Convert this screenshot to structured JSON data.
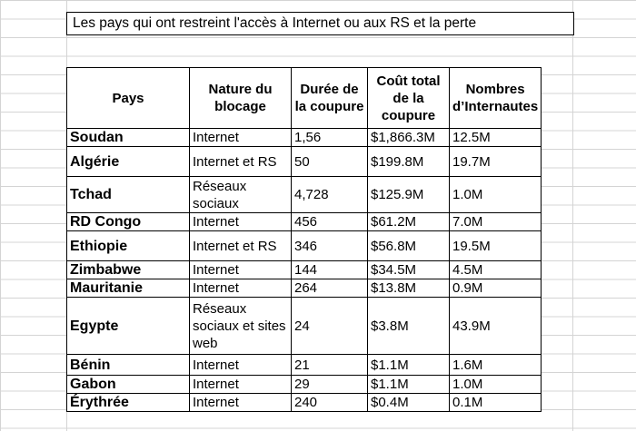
{
  "title": "Les pays qui ont restreint l'accès à Internet ou aux RS et la perte",
  "table": {
    "headers": {
      "pays": "Pays",
      "nature": "Nature du blocage",
      "duree": "Durée de la coupure",
      "cout": "Coût total de la coupure",
      "internautes": "Nombres d’Internautes"
    },
    "rows": [
      {
        "pays": "Soudan",
        "nature": "Internet",
        "duree": "1,56",
        "cout": "$1,866.3M",
        "internautes": "12.5M"
      },
      {
        "pays": "Algérie",
        "nature": "Internet et RS",
        "duree": "50",
        "cout": "$199.8M",
        "internautes": "19.7M"
      },
      {
        "pays": "Tchad",
        "nature": "Réseaux sociaux",
        "duree": "4,728",
        "cout": "$125.9M",
        "internautes": "1.0M"
      },
      {
        "pays": "RD Congo",
        "nature": "Internet",
        "duree": "456",
        "cout": "$61.2M",
        "internautes": "7.0M"
      },
      {
        "pays": "Ethiopie",
        "nature": "Internet et RS",
        "duree": "346",
        "cout": "$56.8M",
        "internautes": "19.5M"
      },
      {
        "pays": "Zimbabwe",
        "nature": "Internet",
        "duree": "144",
        "cout": "$34.5M",
        "internautes": "4.5M"
      },
      {
        "pays": "Mauritanie",
        "nature": "Internet",
        "duree": "264",
        "cout": "$13.8M",
        "internautes": "0.9M"
      },
      {
        "pays": "Egypte",
        "nature": "Réseaux sociaux et sites web",
        "duree": "24",
        "cout": "$3.8M",
        "internautes": "43.9M"
      },
      {
        "pays": "Bénin",
        "nature": "Internet",
        "duree": "21",
        "cout": "$1.1M",
        "internautes": "1.6M"
      },
      {
        "pays": "Gabon",
        "nature": "Internet",
        "duree": "29",
        "cout": "$1.1M",
        "internautes": "1.0M"
      },
      {
        "pays": "Érythrée",
        "nature": "Internet",
        "duree": "240",
        "cout": "$0.4M",
        "internautes": "0.1M"
      }
    ]
  }
}
